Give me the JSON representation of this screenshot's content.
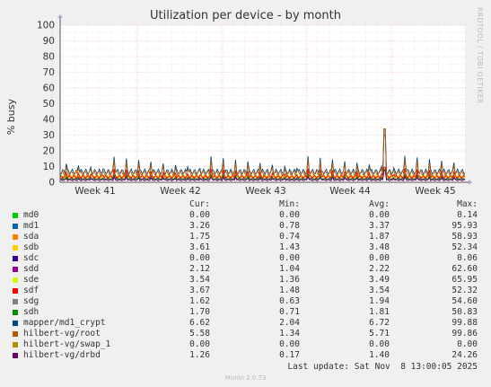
{
  "chart_data": {
    "type": "line",
    "title": "Utilization per device - by month",
    "ylabel": "% busy",
    "ylim": [
      0,
      100
    ],
    "yticks": [
      0,
      10,
      20,
      30,
      40,
      50,
      60,
      70,
      80,
      90,
      100
    ],
    "xticks": [
      "Week 41",
      "Week 42",
      "Week 43",
      "Week 44",
      "Week 45"
    ],
    "grid": true,
    "legend_placement": "bottom",
    "columns": [
      "Cur:",
      "Min:",
      "Avg:",
      "Max:"
    ],
    "series": [
      {
        "name": "md0",
        "color": "#00cc00",
        "cur": "0.00",
        "min": "0.00",
        "avg": "0.00",
        "max": "0.14"
      },
      {
        "name": "md1",
        "color": "#0066b3",
        "cur": "3.26",
        "min": "0.78",
        "avg": "3.37",
        "max": "95.93"
      },
      {
        "name": "sda",
        "color": "#ff8000",
        "cur": "1.75",
        "min": "0.74",
        "avg": "1.87",
        "max": "58.93"
      },
      {
        "name": "sdb",
        "color": "#ffcc00",
        "cur": "3.61",
        "min": "1.43",
        "avg": "3.48",
        "max": "52.34"
      },
      {
        "name": "sdc",
        "color": "#330099",
        "cur": "0.00",
        "min": "0.00",
        "avg": "0.00",
        "max": "0.06"
      },
      {
        "name": "sdd",
        "color": "#990099",
        "cur": "2.12",
        "min": "1.04",
        "avg": "2.22",
        "max": "62.60"
      },
      {
        "name": "sde",
        "color": "#ccff00",
        "cur": "3.54",
        "min": "1.36",
        "avg": "3.49",
        "max": "65.95"
      },
      {
        "name": "sdf",
        "color": "#ff0000",
        "cur": "3.67",
        "min": "1.48",
        "avg": "3.54",
        "max": "52.32"
      },
      {
        "name": "sdg",
        "color": "#808080",
        "cur": "1.62",
        "min": "0.63",
        "avg": "1.94",
        "max": "54.60"
      },
      {
        "name": "sdh",
        "color": "#008f00",
        "cur": "1.70",
        "min": "0.71",
        "avg": "1.81",
        "max": "50.83"
      },
      {
        "name": "mapper/md1_crypt",
        "color": "#00487d",
        "cur": "6.62",
        "min": "2.04",
        "avg": "6.72",
        "max": "99.88"
      },
      {
        "name": "hilbert-vg/root",
        "color": "#b35a00",
        "cur": "5.58",
        "min": "1.34",
        "avg": "5.71",
        "max": "99.86"
      },
      {
        "name": "hilbert-vg/swap_1",
        "color": "#b38f00",
        "cur": "0.00",
        "min": "0.00",
        "avg": "0.00",
        "max": "0.00"
      },
      {
        "name": "hilbert-vg/drbd",
        "color": "#6b006b",
        "cur": "1.26",
        "min": "0.17",
        "avg": "1.40",
        "max": "24.26"
      }
    ]
  },
  "brand_side": "RRDTOOL / TOBI OETIKER",
  "last_update": "Last update: Sat Nov  8 13:00:05 2025",
  "munin_version": "Munin 2.0.73"
}
